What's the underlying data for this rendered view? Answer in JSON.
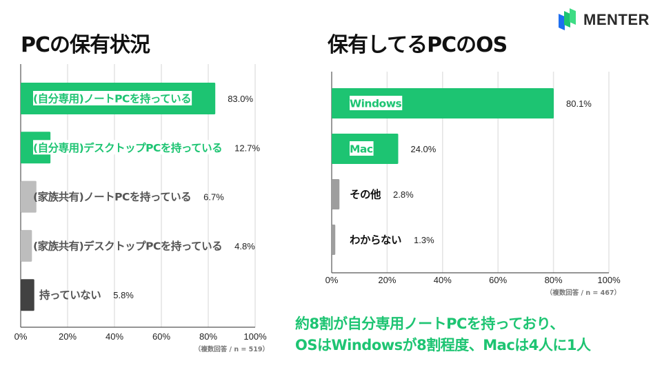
{
  "brand": {
    "name": "MENTER",
    "colors": {
      "green": "#1dc472",
      "blue": "#1e6ff0",
      "light_green": "#3ddc84"
    }
  },
  "summary": {
    "line1": "約8割が自分専用ノートPCを持っており、",
    "line2": "OSはWindowsが8割程度、Macは4人に1人"
  },
  "chart_data": [
    {
      "type": "bar",
      "orientation": "horizontal",
      "title": "PCの保有状況",
      "categories": [
        "(自分専用)ノートPCを持っている",
        "(自分専用)デスクトップPCを持っている",
        "(家族共有)ノートPCを持っている",
        "(家族共有)デスクトップPCを持っている",
        "持っていない"
      ],
      "values": [
        83.0,
        12.7,
        6.7,
        4.8,
        5.8
      ],
      "value_labels": [
        "83.0%",
        "12.7%",
        "6.7%",
        "4.8%",
        "5.8%"
      ],
      "bar_colors": [
        "#1dc472",
        "#1dc472",
        "#bdbdbd",
        "#bdbdbd",
        "#424242"
      ],
      "label_colors": [
        "#1dc472",
        "#1dc472",
        "#555555",
        "#555555",
        "#555555"
      ],
      "label_highlight": [
        true,
        true,
        false,
        false,
        false
      ],
      "xlim": [
        0,
        100
      ],
      "xticks": [
        "0%",
        "20%",
        "40%",
        "60%",
        "80%",
        "100%"
      ],
      "grid": true,
      "note": "（複数回答 / n = 519）"
    },
    {
      "type": "bar",
      "orientation": "horizontal",
      "title": "保有してるPCのOS",
      "categories": [
        "Windows",
        "Mac",
        "その他",
        "わからない"
      ],
      "values": [
        80.1,
        24.0,
        2.8,
        1.3
      ],
      "value_labels": [
        "80.1%",
        "24.0%",
        "2.8%",
        "1.3%"
      ],
      "bar_colors": [
        "#1dc472",
        "#1dc472",
        "#9e9e9e",
        "#9e9e9e"
      ],
      "label_colors": [
        "#1dc472",
        "#1dc472",
        "#111111",
        "#111111"
      ],
      "label_highlight": [
        true,
        true,
        false,
        false
      ],
      "xlim": [
        0,
        100
      ],
      "xticks": [
        "0%",
        "20%",
        "40%",
        "60%",
        "80%",
        "100%"
      ],
      "grid": true,
      "note": "（複数回答 / n = 467）"
    }
  ]
}
